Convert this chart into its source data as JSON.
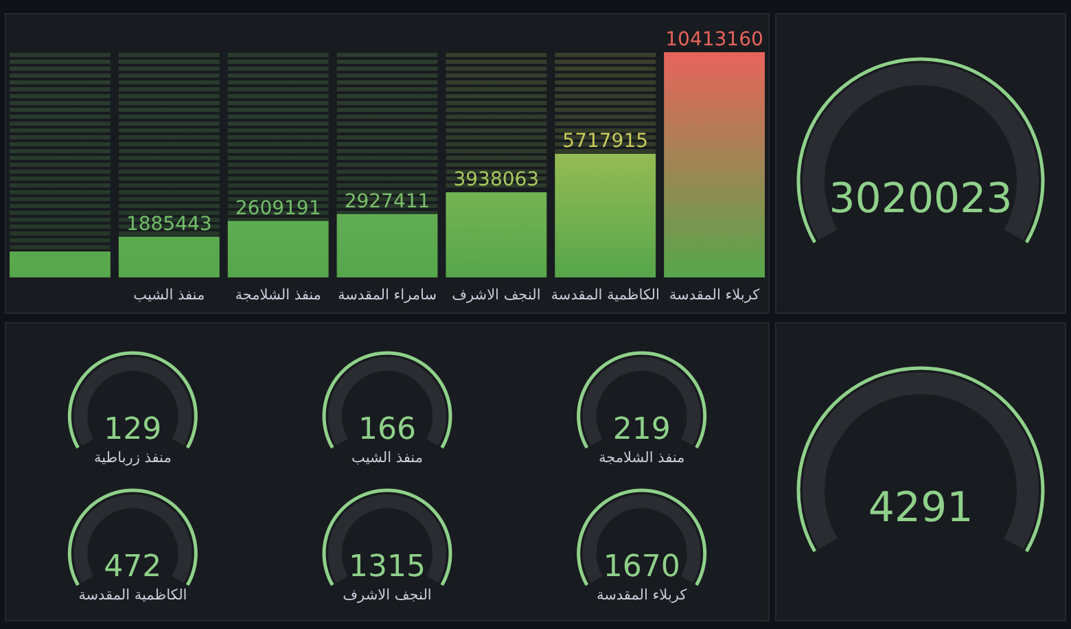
{
  "chart_data": [
    {
      "type": "bar",
      "categories": [
        null,
        "منفذ الشيب",
        "منفذ الشلامجة",
        "سامراء المقدسة",
        "النجف الاشرف",
        "الكاظمية المقدسة",
        "كربلاء المقدسة"
      ],
      "values": [
        1200000,
        1885443,
        2609191,
        2927411,
        3938063,
        5717915,
        10413160
      ],
      "value_labels": [
        null,
        "1885443",
        "2609191",
        "2927411",
        "3938063",
        "5717915",
        "10413160"
      ],
      "colors": [
        "#73bf69",
        "#73bf69",
        "#73bf69",
        "#7cc06a",
        "#a8c95e",
        "#c9cc5a",
        "#e8645c"
      ]
    },
    {
      "type": "other",
      "values": [
        3020023
      ],
      "data_labels": true
    },
    {
      "type": "other",
      "categories": [
        "منفذ زرباطية",
        "منفذ الشيب",
        "منفذ الشلامجة",
        "الكاظمية المقدسة",
        "النجف الاشرف",
        "كربلاء المقدسة"
      ],
      "values": [
        129,
        166,
        219,
        472,
        1315,
        1670
      ],
      "data_labels": true
    },
    {
      "type": "other",
      "values": [
        4291
      ],
      "data_labels": true
    }
  ]
}
